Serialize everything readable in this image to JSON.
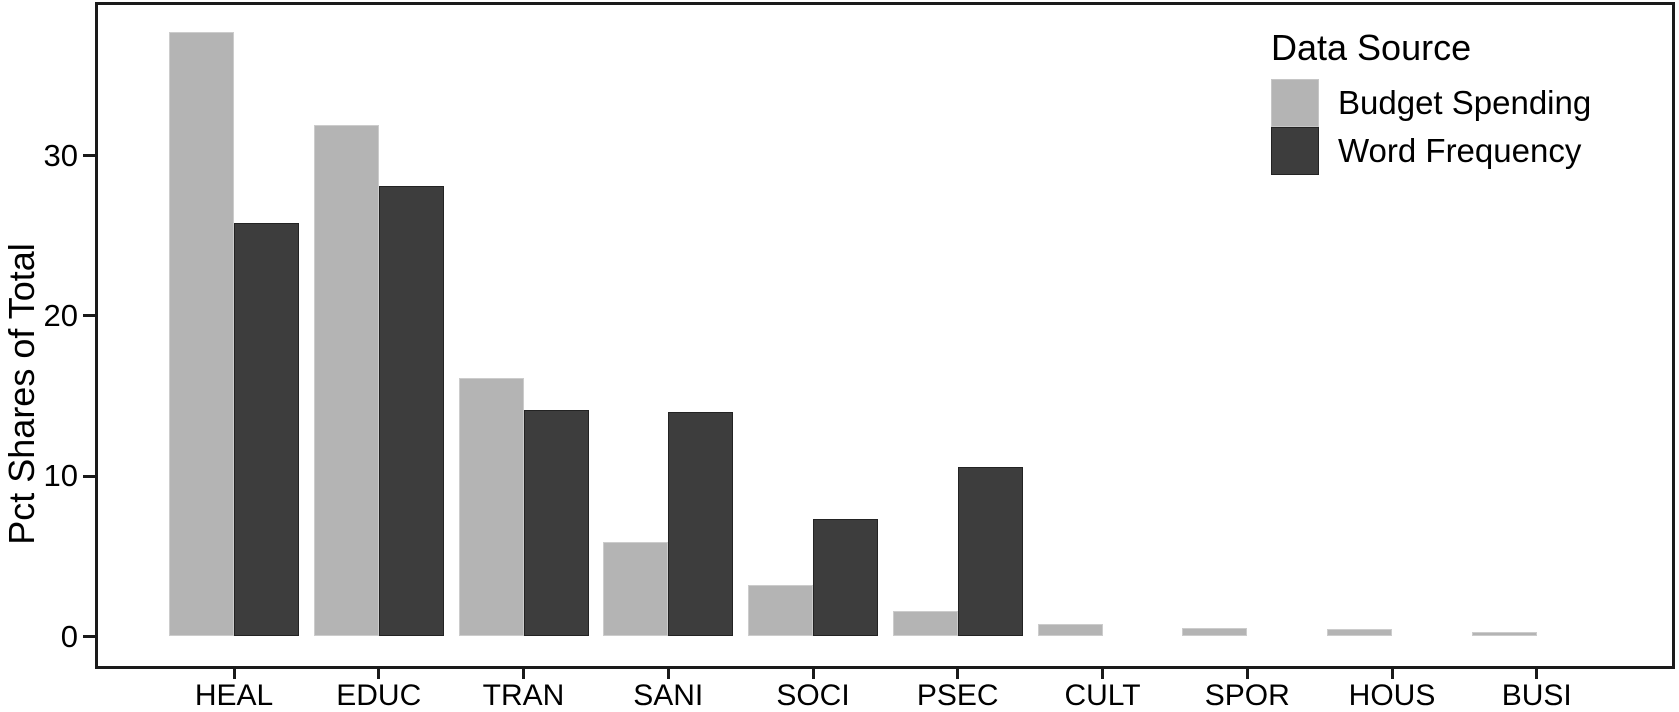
{
  "chart_data": {
    "type": "bar",
    "title": "",
    "categories": [
      "HEAL",
      "EDUC",
      "TRAN",
      "SANI",
      "SOCI",
      "PSEC",
      "CULT",
      "SPOR",
      "HOUS",
      "BUSI"
    ],
    "series": [
      {
        "name": "Budget Spending",
        "color": "#b4b4b4",
        "values": [
          37.7,
          31.9,
          16.1,
          5.9,
          3.2,
          1.6,
          0.75,
          0.55,
          0.45,
          0.3
        ]
      },
      {
        "name": "Word Frequency",
        "color": "#3d3d3d",
        "values": [
          25.8,
          28.1,
          14.1,
          14.0,
          7.3,
          10.6,
          0,
          0,
          0,
          0
        ]
      }
    ],
    "xlabel": "",
    "ylabel": "Pct Shares of Total",
    "yticks": [
      0,
      10,
      20,
      30
    ],
    "ylim": [
      0,
      39.6
    ],
    "legend_title": "Data Source",
    "legend_position": "top-right-inside",
    "grid": false,
    "panel_border": true,
    "axis_color": "#1a1a1a",
    "background_color": "#ffffff"
  }
}
